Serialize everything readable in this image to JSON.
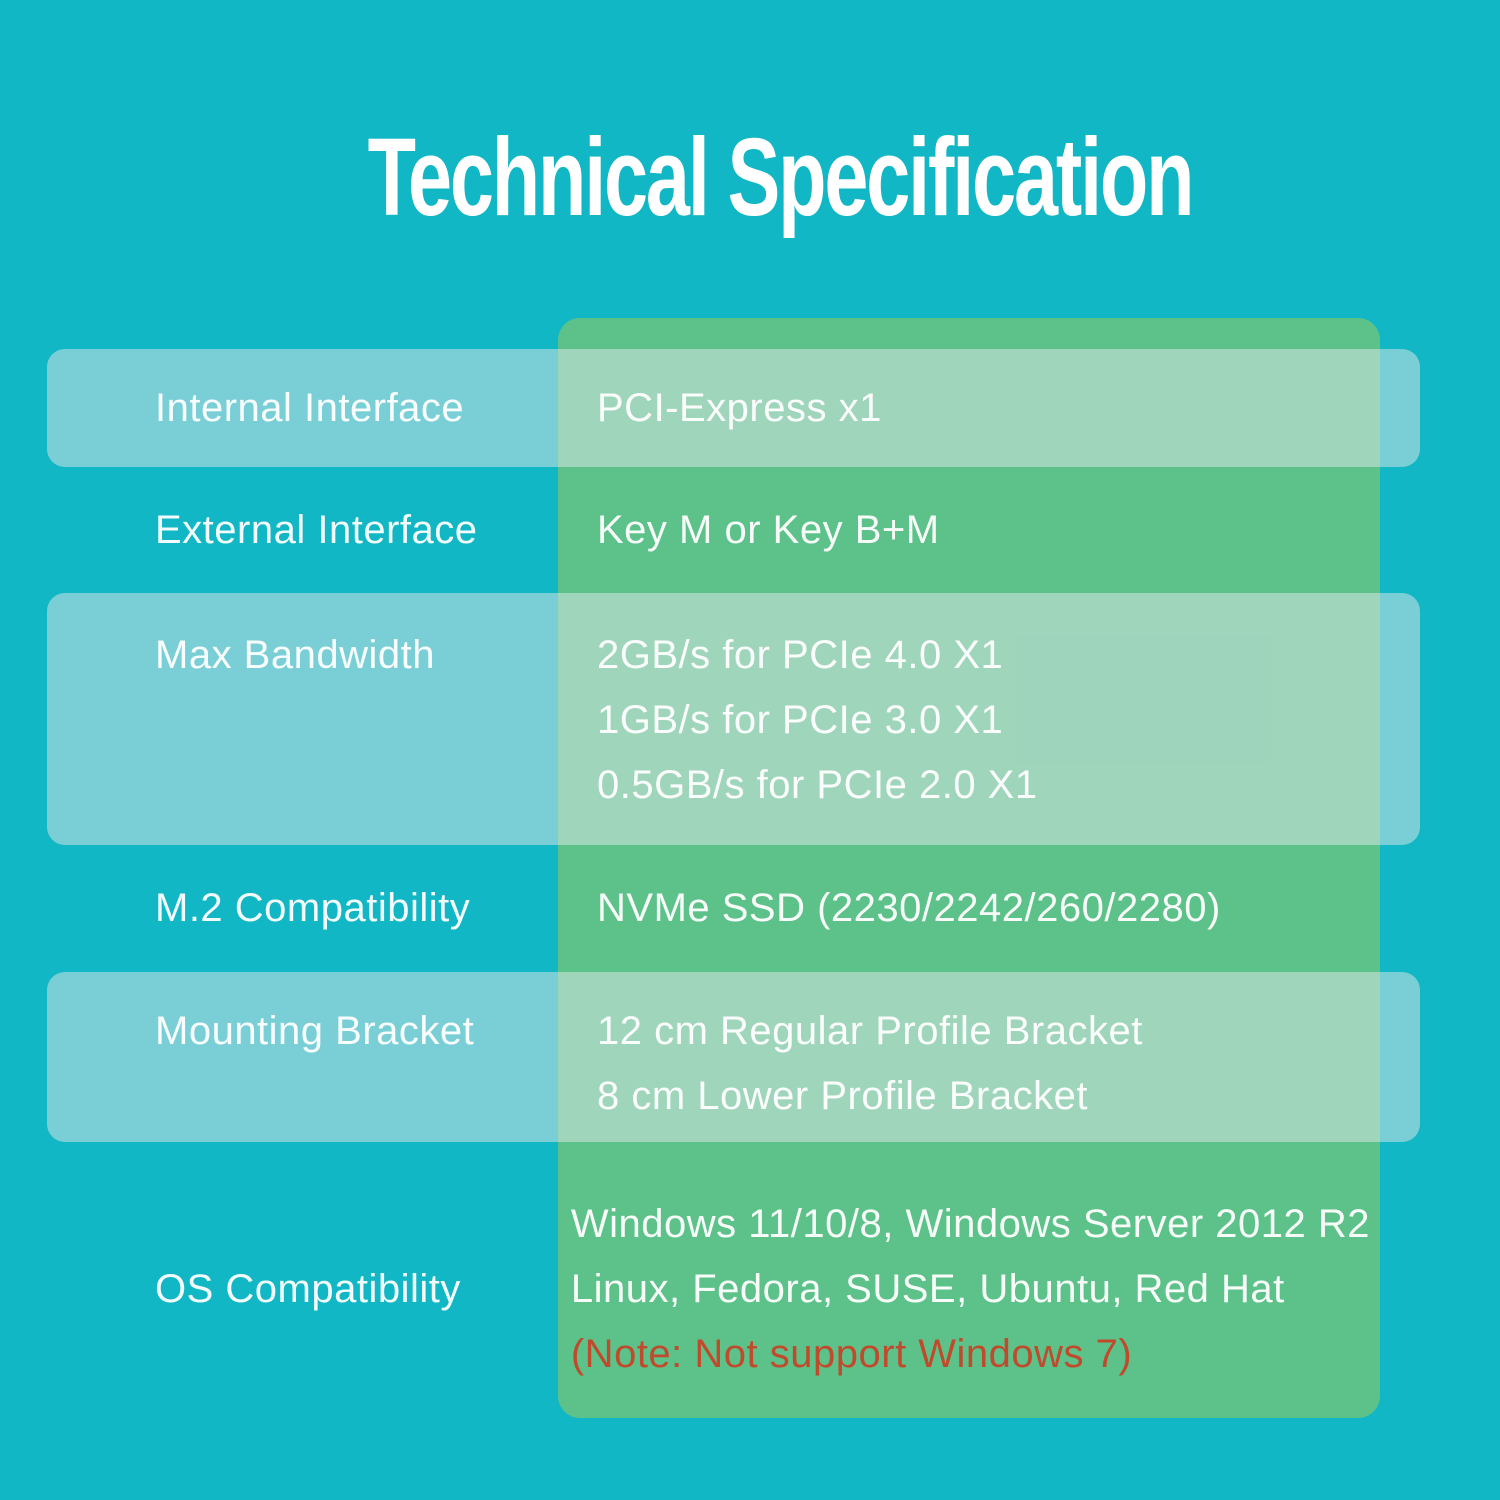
{
  "title": "Technical Specification",
  "colors": {
    "background": "#12b7c5",
    "green_overlay": "rgba(133,199,106,0.65)",
    "stripe_overlay": "rgba(218,230,232,0.52)",
    "text": "rgba(255,255,255,0.95)",
    "title": "#ffffff",
    "note": "#c04b2c"
  },
  "table": {
    "rows": [
      {
        "label": "Internal Interface",
        "values": [
          "PCI-Express x1"
        ]
      },
      {
        "label": "External Interface",
        "values": [
          "Key M or Key B+M"
        ]
      },
      {
        "label": "Max Bandwidth",
        "values": [
          "2GB/s for PCIe 4.0 X1",
          "1GB/s for PCIe 3.0 X1",
          "0.5GB/s for PCIe 2.0 X1"
        ]
      },
      {
        "label": "M.2 Compatibility",
        "values": [
          "NVMe SSD (2230/2242/260/2280)"
        ]
      },
      {
        "label": "Mounting Bracket",
        "values": [
          "12 cm Regular Profile Bracket",
          "8 cm Lower Profile Bracket"
        ]
      },
      {
        "label": "OS Compatibility",
        "values": [
          "Windows 11/10/8, Windows Server 2012 R2",
          "Linux, Fedora, SUSE, Ubuntu, Red Hat"
        ],
        "note": "(Note: Not support Windows 7)"
      }
    ]
  }
}
